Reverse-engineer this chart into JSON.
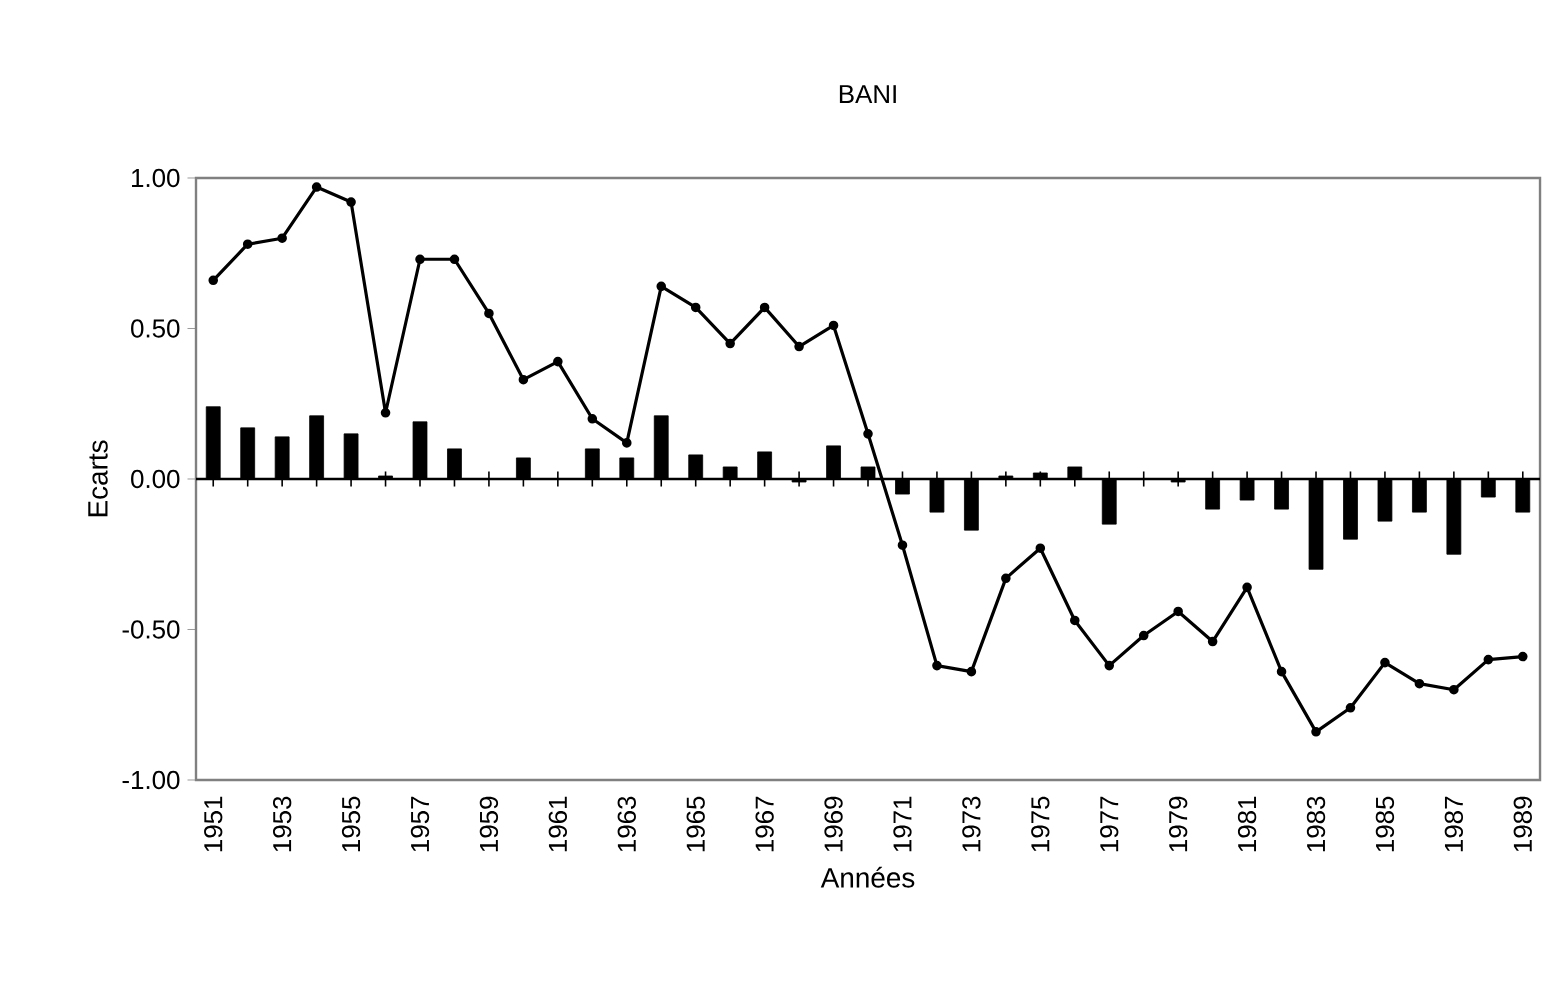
{
  "chart_data": {
    "type": "line",
    "title": "BANI",
    "xlabel": "Années",
    "ylabel": "Ecarts",
    "x": [
      1951,
      1952,
      1953,
      1954,
      1955,
      1956,
      1957,
      1958,
      1959,
      1960,
      1961,
      1962,
      1963,
      1964,
      1965,
      1966,
      1967,
      1968,
      1969,
      1970,
      1971,
      1972,
      1973,
      1974,
      1975,
      1976,
      1977,
      1978,
      1979,
      1980,
      1981,
      1982,
      1983,
      1984,
      1985,
      1986,
      1987,
      1988,
      1989
    ],
    "series": [
      {
        "type": "bar",
        "color": "#000000",
        "values": [
          0.24,
          0.17,
          0.14,
          0.21,
          0.15,
          0.01,
          0.19,
          0.1,
          0,
          0.07,
          0,
          0.1,
          0.07,
          0.21,
          0.08,
          0.04,
          0.09,
          -0.01,
          0.11,
          0.04,
          -0.05,
          -0.11,
          -0.17,
          0.01,
          0.02,
          0.04,
          -0.15,
          0,
          -0.01,
          -0.1,
          -0.07,
          -0.1,
          -0.3,
          -0.2,
          -0.14,
          -0.11,
          -0.25,
          -0.06,
          -0.11
        ]
      },
      {
        "color": "#000000",
        "marker": "circle",
        "values": [
          0.66,
          0.78,
          0.8,
          0.97,
          0.92,
          0.22,
          0.73,
          0.73,
          0.55,
          0.33,
          0.39,
          0.2,
          0.12,
          0.64,
          0.57,
          0.45,
          0.57,
          0.44,
          0.51,
          0.15,
          -0.22,
          -0.62,
          -0.64,
          -0.33,
          -0.23,
          -0.47,
          -0.62,
          -0.52,
          -0.44,
          -0.54,
          -0.36,
          -0.64,
          -0.84,
          -0.76,
          -0.61,
          -0.68,
          -0.7,
          -0.6,
          -0.59
        ]
      }
    ],
    "xlim": [
      1950.5,
      1989.5
    ],
    "xticks": [
      1951,
      {
        "value": 1952,
        "label": null
      },
      1953,
      {
        "value": 1954,
        "label": null
      },
      1955,
      {
        "value": 1956,
        "label": null
      },
      1957,
      {
        "value": 1958,
        "label": null
      },
      1959,
      {
        "value": 1960,
        "label": null
      },
      1961,
      {
        "value": 1962,
        "label": null
      },
      1963,
      {
        "value": 1964,
        "label": null
      },
      1965,
      {
        "value": 1966,
        "label": null
      },
      1967,
      {
        "value": 1968,
        "label": null
      },
      1969,
      {
        "value": 1970,
        "label": null
      },
      1971,
      {
        "value": 1972,
        "label": null
      },
      1973,
      {
        "value": 1974,
        "label": null
      },
      1975,
      {
        "value": 1976,
        "label": null
      },
      1977,
      {
        "value": 1978,
        "label": null
      },
      1979,
      {
        "value": 1980,
        "label": null
      },
      1981,
      {
        "value": 1982,
        "label": null
      },
      1983,
      {
        "value": 1984,
        "label": null
      },
      1985,
      {
        "value": 1986,
        "label": null
      },
      1987,
      {
        "value": 1988,
        "label": null
      },
      1989
    ],
    "ylim": [
      -1,
      1
    ],
    "yticks": [
      {
        "value": -1,
        "label": "-1.00"
      },
      {
        "value": -0.5,
        "label": "-0.50"
      },
      {
        "value": 0,
        "label": "0.00"
      },
      {
        "value": 0.5,
        "label": "0.50"
      },
      {
        "value": 1,
        "label": "1.00"
      }
    ],
    "ref_lines": [
      {
        "axis": "y",
        "value": 0,
        "color": "#000000"
      }
    ],
    "grid": false
  }
}
